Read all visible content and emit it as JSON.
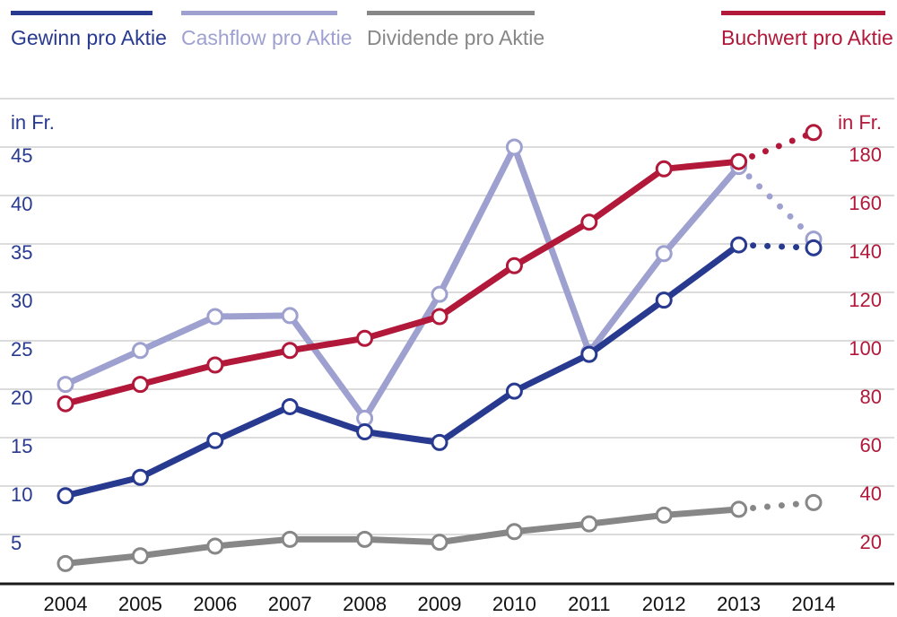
{
  "colors": {
    "gewinn": "#283a90",
    "cashflow": "#9ea1d0",
    "dividende": "#878787",
    "buchwert": "#b1183a",
    "grid": "#c6c6c6",
    "axis": "#1a1a1a",
    "year": "#111111"
  },
  "chart_data": {
    "type": "line",
    "categories": [
      "2004",
      "2005",
      "2006",
      "2007",
      "2008",
      "2009",
      "2010",
      "2011",
      "2012",
      "2013",
      "2014"
    ],
    "left_axis": {
      "label": "in Fr.",
      "ticks": [
        5,
        10,
        15,
        20,
        25,
        30,
        35,
        40,
        45
      ],
      "range": [
        0,
        50
      ]
    },
    "right_axis": {
      "label": "in Fr.",
      "ticks": [
        20,
        40,
        60,
        80,
        100,
        120,
        140,
        160,
        180
      ],
      "range": [
        0,
        200
      ]
    },
    "series": [
      {
        "key": "cashflow",
        "name": "Cashflow pro Aktie",
        "axis": "left",
        "values": [
          20.5,
          24,
          27.5,
          27.6,
          17,
          29.8,
          45,
          23.8,
          34,
          43,
          35.5
        ],
        "projected_last": true
      },
      {
        "key": "buchwert",
        "name": "Buchwert pro Aktie",
        "axis": "right",
        "values": [
          74,
          82,
          90,
          96,
          101,
          110,
          131,
          149,
          171,
          174,
          186
        ],
        "projected_last": true
      },
      {
        "key": "gewinn",
        "name": "Gewinn pro Aktie",
        "axis": "left",
        "values": [
          9,
          10.9,
          14.7,
          18.2,
          15.6,
          14.5,
          19.8,
          23.6,
          29.2,
          34.9,
          34.6
        ],
        "projected_last": true
      },
      {
        "key": "dividende",
        "name": "Dividende pro Aktie",
        "axis": "left",
        "values": [
          2,
          2.8,
          3.8,
          4.5,
          4.5,
          4.2,
          5.3,
          6.1,
          7,
          7.6,
          8.3
        ],
        "projected_last": true
      }
    ]
  },
  "legend": [
    {
      "key": "gewinn",
      "label": "Gewinn pro Aktie"
    },
    {
      "key": "cashflow",
      "label": "Cashflow pro Aktie"
    },
    {
      "key": "dividende",
      "label": "Dividende pro Aktie"
    },
    {
      "key": "buchwert",
      "label": "Buchwert pro Aktie"
    }
  ]
}
